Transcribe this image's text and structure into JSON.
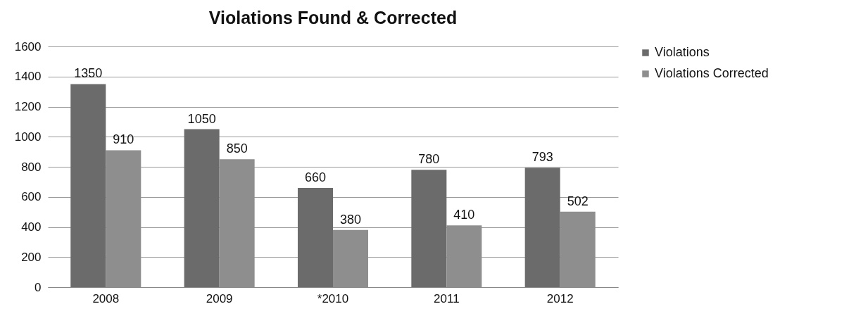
{
  "chart_data": {
    "type": "bar",
    "title": "Violations Found & Corrected",
    "categories": [
      "2008",
      "2009",
      "*2010",
      "2011",
      "2012"
    ],
    "series": [
      {
        "name": "Violations",
        "color": "#6b6b6b",
        "values": [
          1350,
          1050,
          660,
          780,
          793
        ]
      },
      {
        "name": "Violations Corrected",
        "color": "#8e8e8e",
        "values": [
          910,
          850,
          380,
          410,
          502
        ]
      }
    ],
    "ylim": [
      0,
      1600
    ],
    "yticks": [
      0,
      200,
      400,
      600,
      800,
      1000,
      1200,
      1400,
      1600
    ],
    "grid": "y",
    "legend": "right",
    "data_labels": true
  }
}
